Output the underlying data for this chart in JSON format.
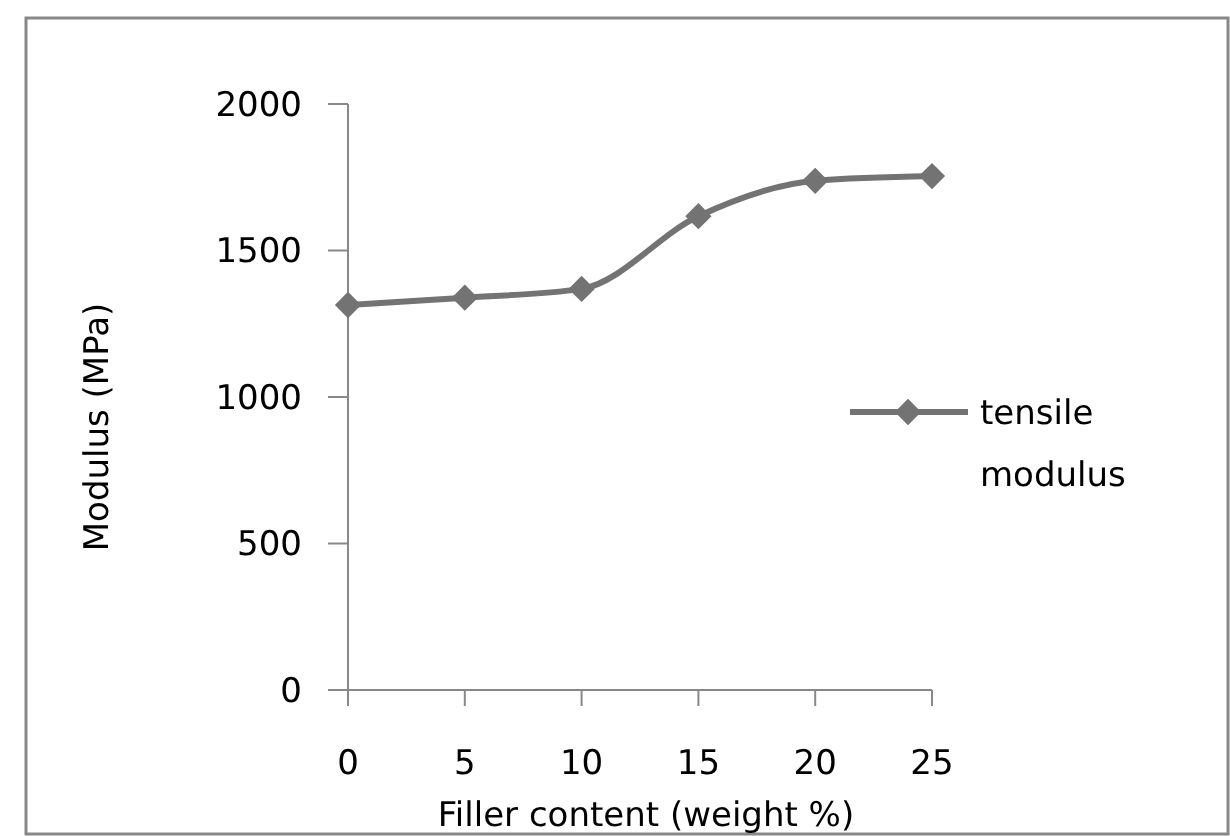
{
  "chart_data": {
    "type": "line",
    "xlabel": "Filler content (weight %)",
    "ylabel": "Modulus (MPa)",
    "x": [
      0,
      5,
      10,
      15,
      20,
      25
    ],
    "series": [
      {
        "name": "tensile modulus",
        "color": "#737373",
        "values": [
          1314,
          1339,
          1369,
          1617,
          1738,
          1754
        ]
      }
    ],
    "xlim": [
      0,
      25
    ],
    "xticks": [
      0,
      5,
      10,
      15,
      20,
      25
    ],
    "ylim": [
      0,
      2000
    ],
    "yticks": [
      0,
      500,
      1000,
      1500,
      2000
    ],
    "grid": false,
    "legend": "right",
    "marker": "diamond",
    "line_style": "solid"
  }
}
